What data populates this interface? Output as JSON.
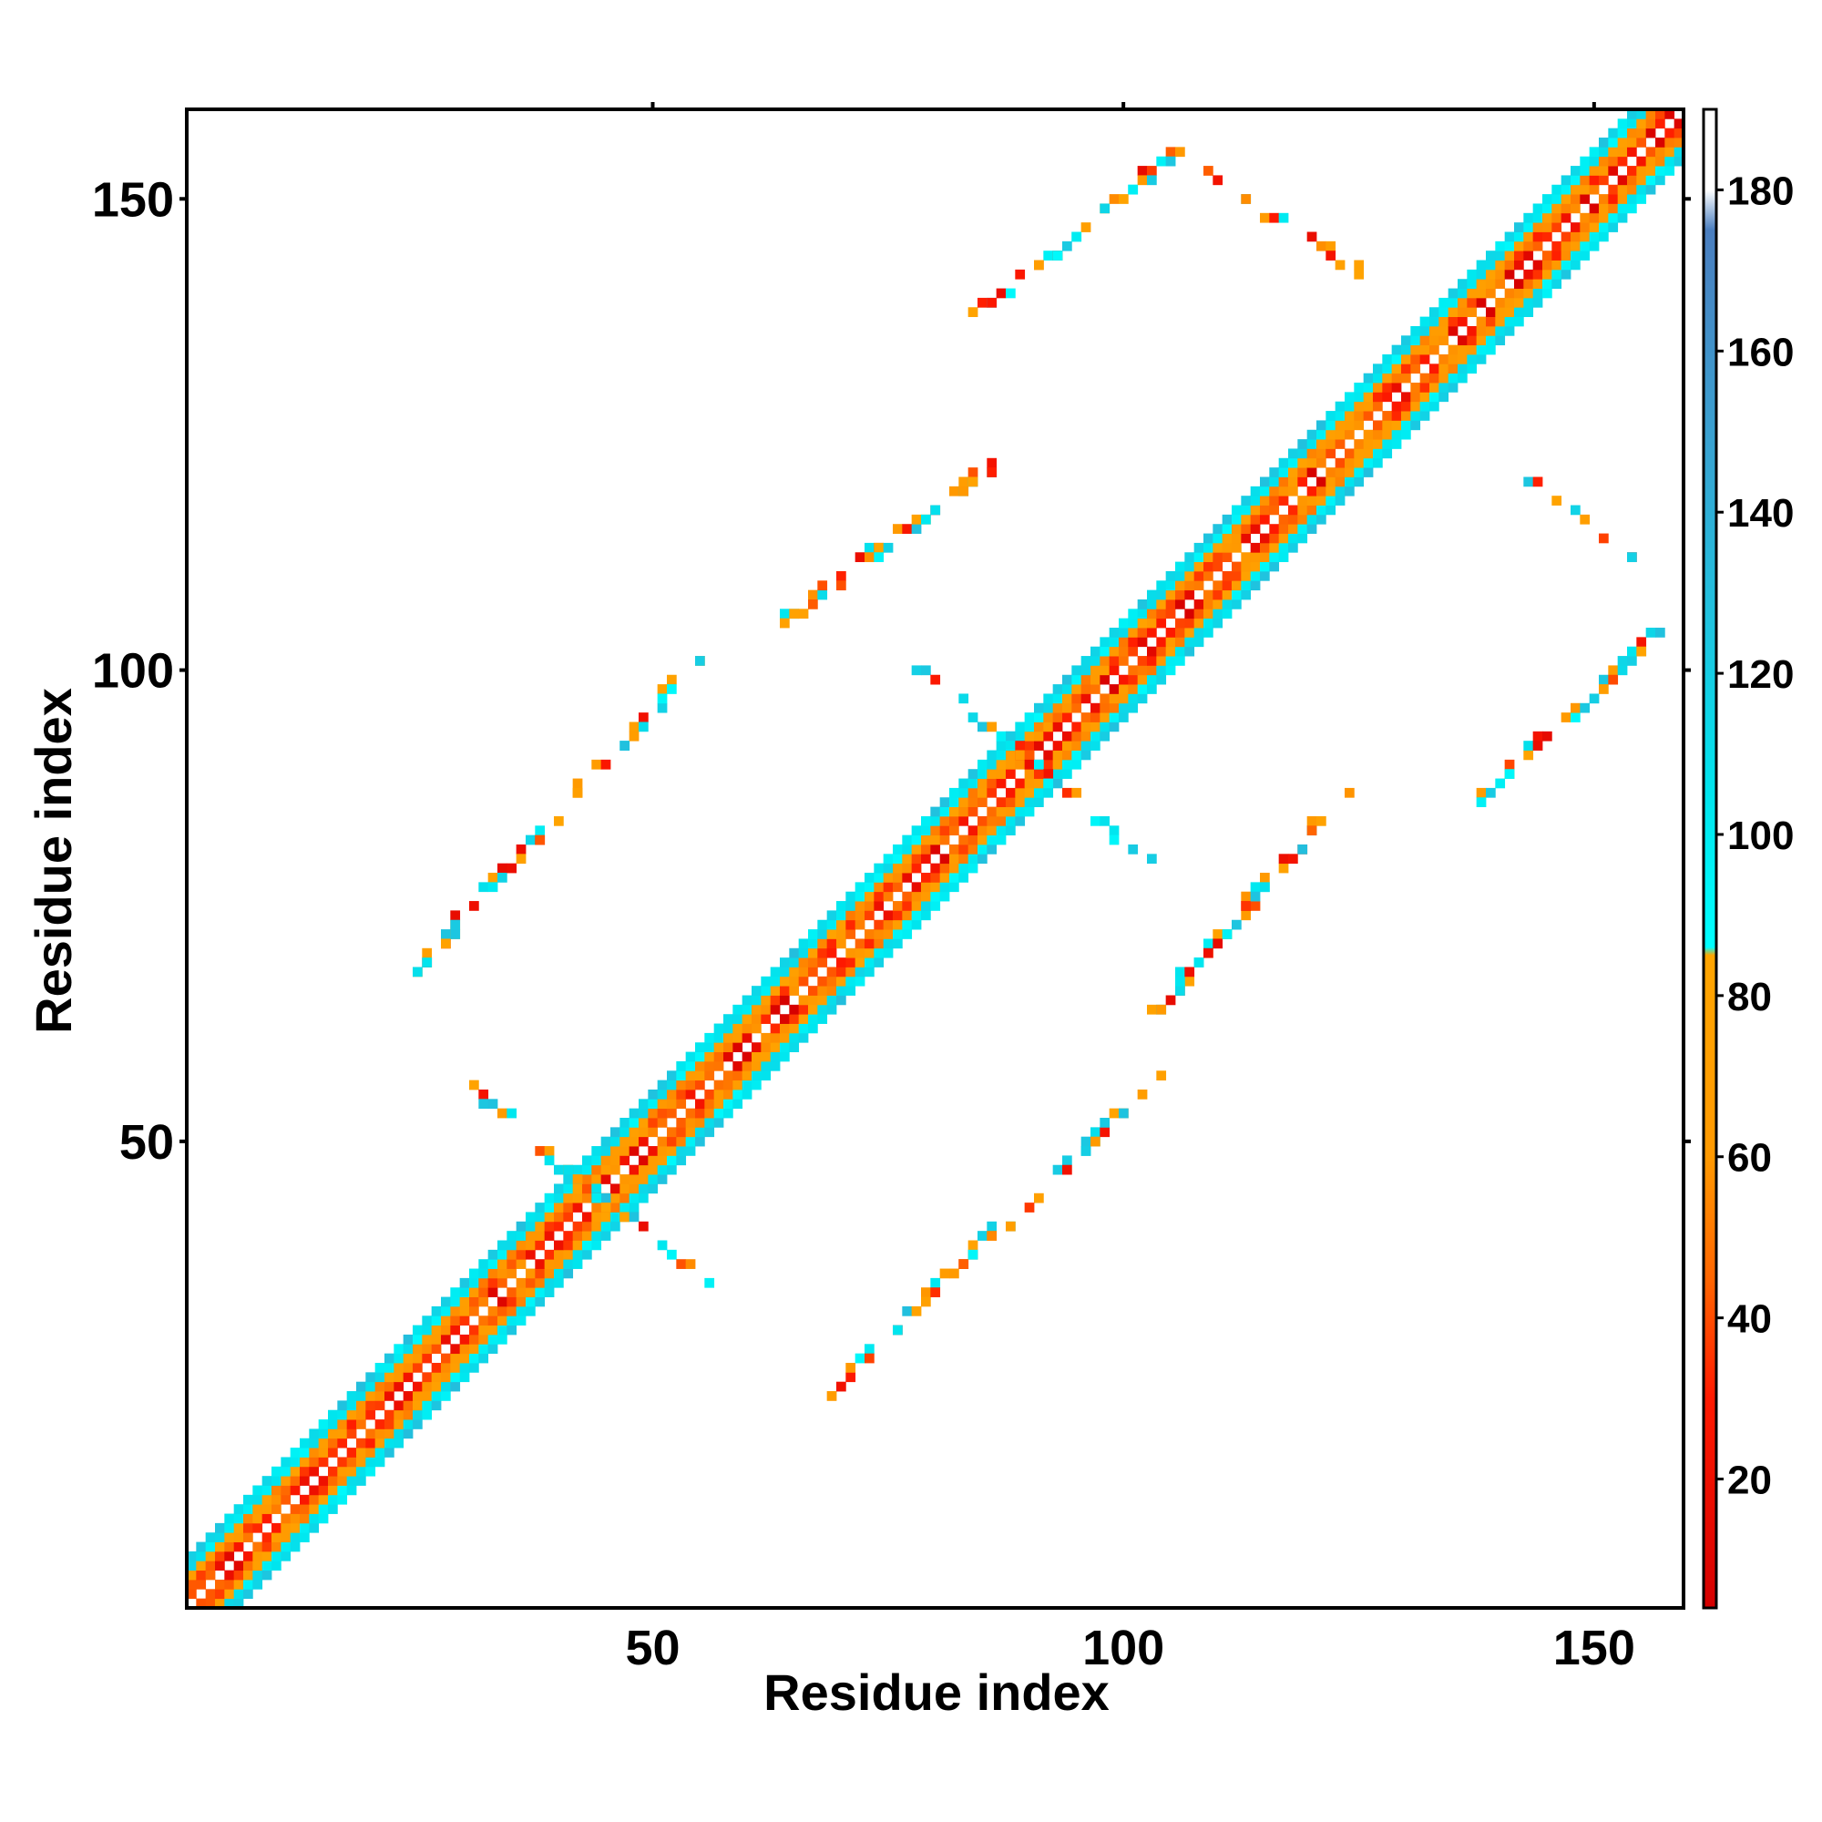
{
  "chart_data": {
    "type": "heatmap",
    "title": "",
    "xlabel": "Residue index",
    "ylabel": "Residue index",
    "xlim": [
      1,
      159
    ],
    "ylim": [
      1,
      159
    ],
    "x_ticks": [
      50,
      100,
      150
    ],
    "y_ticks": [
      50,
      100,
      150
    ],
    "colorbar": {
      "range": [
        4,
        190
      ],
      "ticks": [
        20,
        40,
        60,
        80,
        100,
        120,
        140,
        160,
        180
      ],
      "stops": [
        {
          "value": 4,
          "color": "#d40000"
        },
        {
          "value": 30,
          "color": "#ff1a00"
        },
        {
          "value": 45,
          "color": "#ff6600"
        },
        {
          "value": 60,
          "color": "#ff9900"
        },
        {
          "value": 85,
          "color": "#ffa500"
        },
        {
          "value": 86,
          "color": "#00ffff"
        },
        {
          "value": 105,
          "color": "#00e5ee"
        },
        {
          "value": 125,
          "color": "#1ec5e0"
        },
        {
          "value": 150,
          "color": "#3aa0d0"
        },
        {
          "value": 175,
          "color": "#4a7ebf"
        },
        {
          "value": 180,
          "color": "#ffffff"
        },
        {
          "value": 190,
          "color": "#ffffff"
        }
      ]
    },
    "diagonal_band": {
      "offsets": [
        1,
        2,
        3,
        4,
        5
      ],
      "length": 159
    },
    "off_diagonal_features": [
      {
        "i_start": 24,
        "j_start": 68,
        "i_end": 56,
        "j_end": 103,
        "width": 3
      },
      {
        "i_start": 64,
        "j_start": 106,
        "i_end": 86,
        "j_end": 122,
        "width": 3
      },
      {
        "i_start": 84,
        "j_start": 138,
        "i_end": 105,
        "j_end": 155,
        "width": 3
      },
      {
        "i_start": 69,
        "j_start": 24,
        "i_end": 103,
        "j_end": 57,
        "width": 3
      },
      {
        "i_start": 103,
        "j_start": 64,
        "i_end": 123,
        "j_end": 87,
        "width": 3
      },
      {
        "i_start": 137,
        "j_start": 86,
        "i_end": 156,
        "j_end": 104,
        "width": 3
      },
      {
        "i_start": 108,
        "j_start": 153,
        "i_end": 125,
        "j_end": 142,
        "width": 2
      },
      {
        "i_start": 141,
        "j_start": 122,
        "i_end": 156,
        "j_end": 110,
        "width": 2
      },
      {
        "i_start": 30,
        "j_start": 56,
        "i_end": 44,
        "j_end": 44,
        "width": 2
      },
      {
        "i_start": 44,
        "j_start": 44,
        "i_end": 56,
        "j_end": 34,
        "width": 2
      },
      {
        "i_start": 78,
        "j_start": 100,
        "i_end": 90,
        "j_end": 90,
        "width": 2
      },
      {
        "i_start": 90,
        "j_start": 90,
        "i_end": 103,
        "j_end": 79,
        "width": 2
      }
    ]
  }
}
